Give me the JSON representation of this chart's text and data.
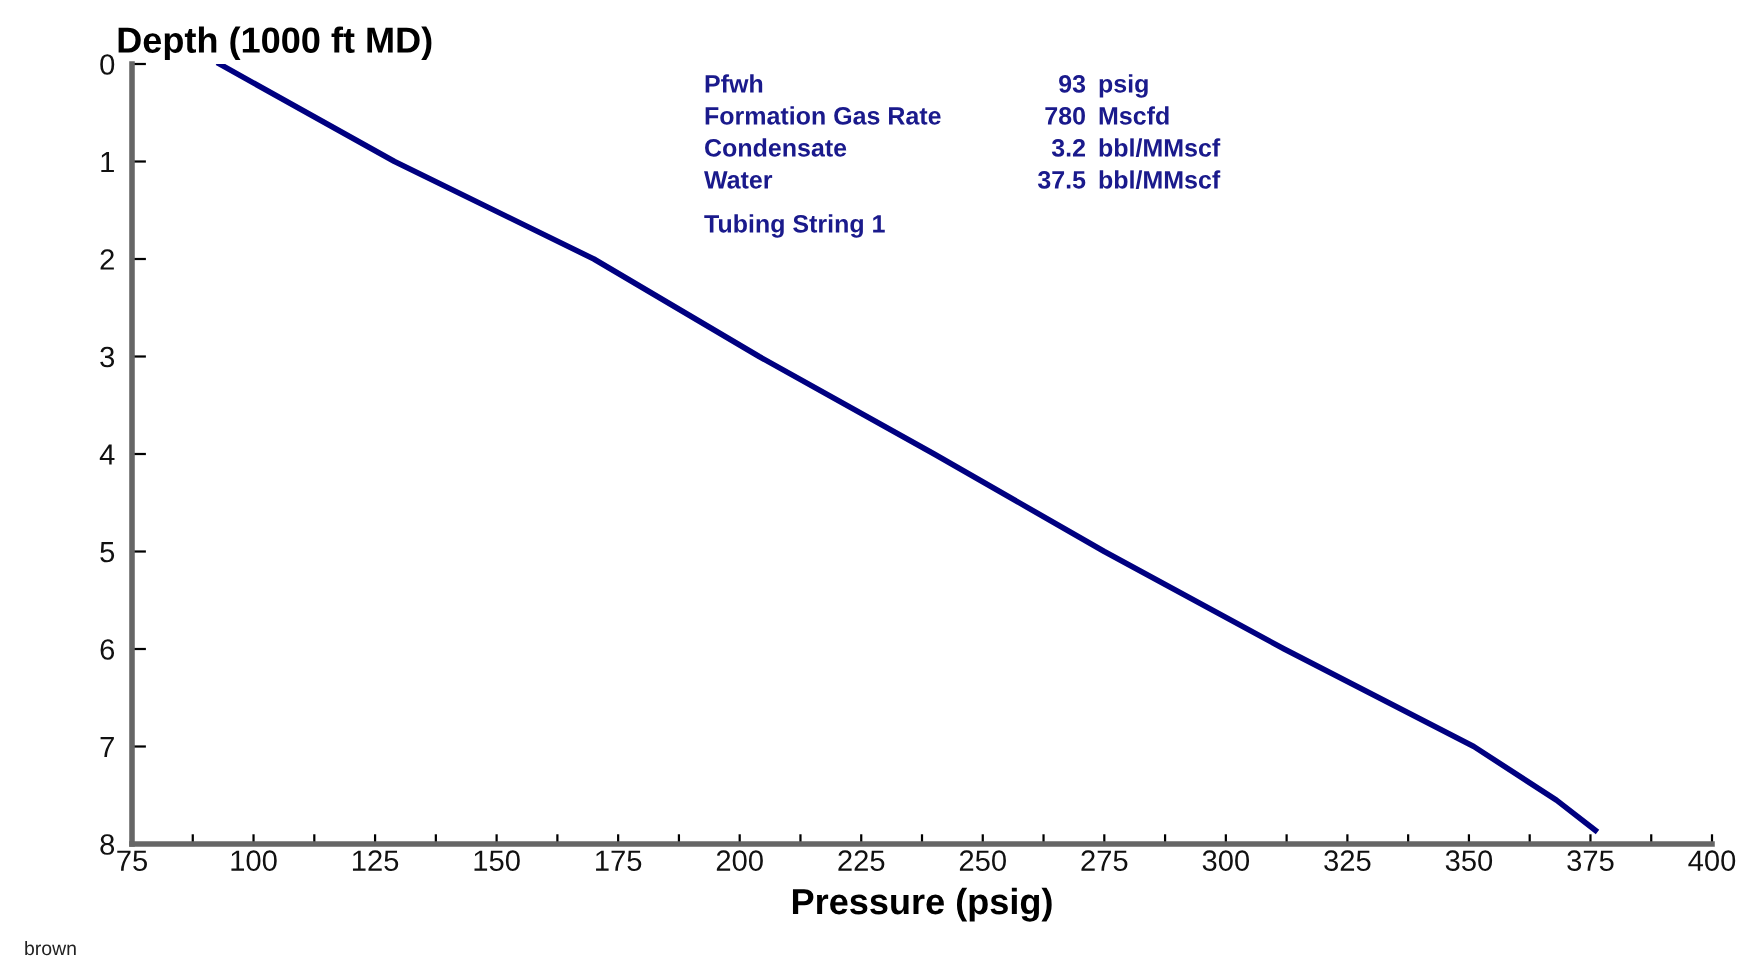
{
  "chart_data": {
    "type": "line",
    "xlabel": "Pressure (psig)",
    "ylabel": "Depth (1000 ft MD)",
    "x": [
      93,
      129,
      170,
      204,
      240,
      275,
      312,
      351,
      368,
      376
    ],
    "series": [
      {
        "color": "#000080",
        "values": [
          0,
          1,
          2,
          3,
          4,
          5,
          6,
          7,
          7.55,
          7.86
        ]
      }
    ],
    "xlim": [
      75,
      400
    ],
    "ylim": [
      8,
      0
    ],
    "xticks": [
      75,
      {
        "value": 87.5,
        "label": null
      },
      100,
      {
        "value": 112.5,
        "label": null
      },
      125,
      {
        "value": 137.5,
        "label": null
      },
      150,
      {
        "value": 162.5,
        "label": null
      },
      175,
      {
        "value": 187.5,
        "label": null
      },
      200,
      {
        "value": 212.5,
        "label": null
      },
      225,
      {
        "value": 237.5,
        "label": null
      },
      250,
      {
        "value": 262.5,
        "label": null
      },
      275,
      {
        "value": 287.5,
        "label": null
      },
      300,
      {
        "value": 312.5,
        "label": null
      },
      325,
      {
        "value": 337.5,
        "label": null
      },
      350,
      {
        "value": 362.5,
        "label": null
      },
      375,
      {
        "value": 387.5,
        "label": null
      },
      400
    ],
    "yticks": [
      0,
      1,
      2,
      3,
      4,
      5,
      6,
      7,
      8
    ],
    "grid": false,
    "legend": false,
    "marker": "none",
    "line_style": "solid",
    "annotations": [
      "Pfwh",
      "93  psig",
      "Formation Gas Rate",
      "780  Mscfd",
      "Condensate",
      "3.2  bbl/MMscf",
      "Water",
      "37.5  bbl/MMscf",
      "Tubing String 1",
      "brown"
    ]
  }
}
